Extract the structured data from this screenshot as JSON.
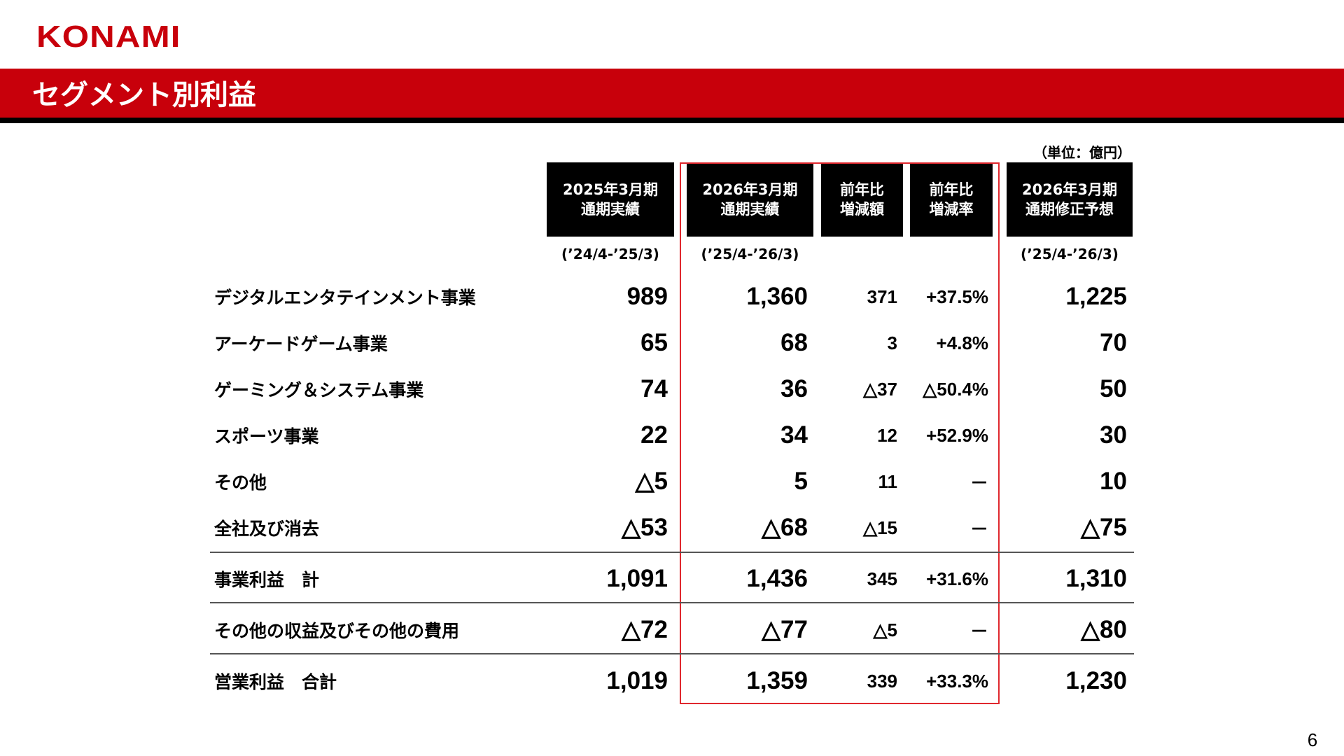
{
  "logo": "KONAMI",
  "title": "セグメント別利益",
  "unit": "（単位：億円）",
  "columns": [
    {
      "line1": "2025年3月期",
      "line2": "通期実績",
      "period": "(’24/4-’25/3)"
    },
    {
      "line1": "2026年3月期",
      "line2": "通期実績",
      "period": "(’25/4-’26/3)"
    },
    {
      "line1": "前年比",
      "line2": "増減額",
      "period": ""
    },
    {
      "line1": "前年比",
      "line2": "増減率",
      "period": ""
    },
    {
      "line1": "2026年3月期",
      "line2": "通期修正予想",
      "period": "(’25/4-’26/3)"
    }
  ],
  "rows": [
    {
      "label": "デジタルエンタテインメント事業",
      "v2025": "989",
      "v2026": "1,360",
      "diff": "371",
      "rate": "+37.5%",
      "forecast": "1,225"
    },
    {
      "label": "アーケードゲーム事業",
      "v2025": "65",
      "v2026": "68",
      "diff": "3",
      "rate": "+4.8%",
      "forecast": "70"
    },
    {
      "label": "ゲーミング＆システム事業",
      "v2025": "74",
      "v2026": "36",
      "diff": "△37",
      "rate": "△50.4%",
      "forecast": "50"
    },
    {
      "label": "スポーツ事業",
      "v2025": "22",
      "v2026": "34",
      "diff": "12",
      "rate": "+52.9%",
      "forecast": "30"
    },
    {
      "label": "その他",
      "v2025": "△5",
      "v2026": "5",
      "diff": "11",
      "rate": "－",
      "forecast": "10"
    },
    {
      "label": "全社及び消去",
      "v2025": "△53",
      "v2026": "△68",
      "diff": "△15",
      "rate": "－",
      "forecast": "△75"
    },
    {
      "label": "事業利益　計",
      "v2025": "1,091",
      "v2026": "1,436",
      "diff": "345",
      "rate": "+31.6%",
      "forecast": "1,310"
    },
    {
      "label": "その他の収益及びその他の費用",
      "v2025": "△72",
      "v2026": "△77",
      "diff": "△5",
      "rate": "－",
      "forecast": "△80"
    },
    {
      "label": "営業利益　合計",
      "v2025": "1,019",
      "v2026": "1,359",
      "diff": "339",
      "rate": "+33.3%",
      "forecast": "1,230"
    }
  ],
  "page_number": "6",
  "colors": {
    "brand_red": "#c8000b",
    "header_black": "#000000",
    "highlight_border": "#e0282e"
  }
}
